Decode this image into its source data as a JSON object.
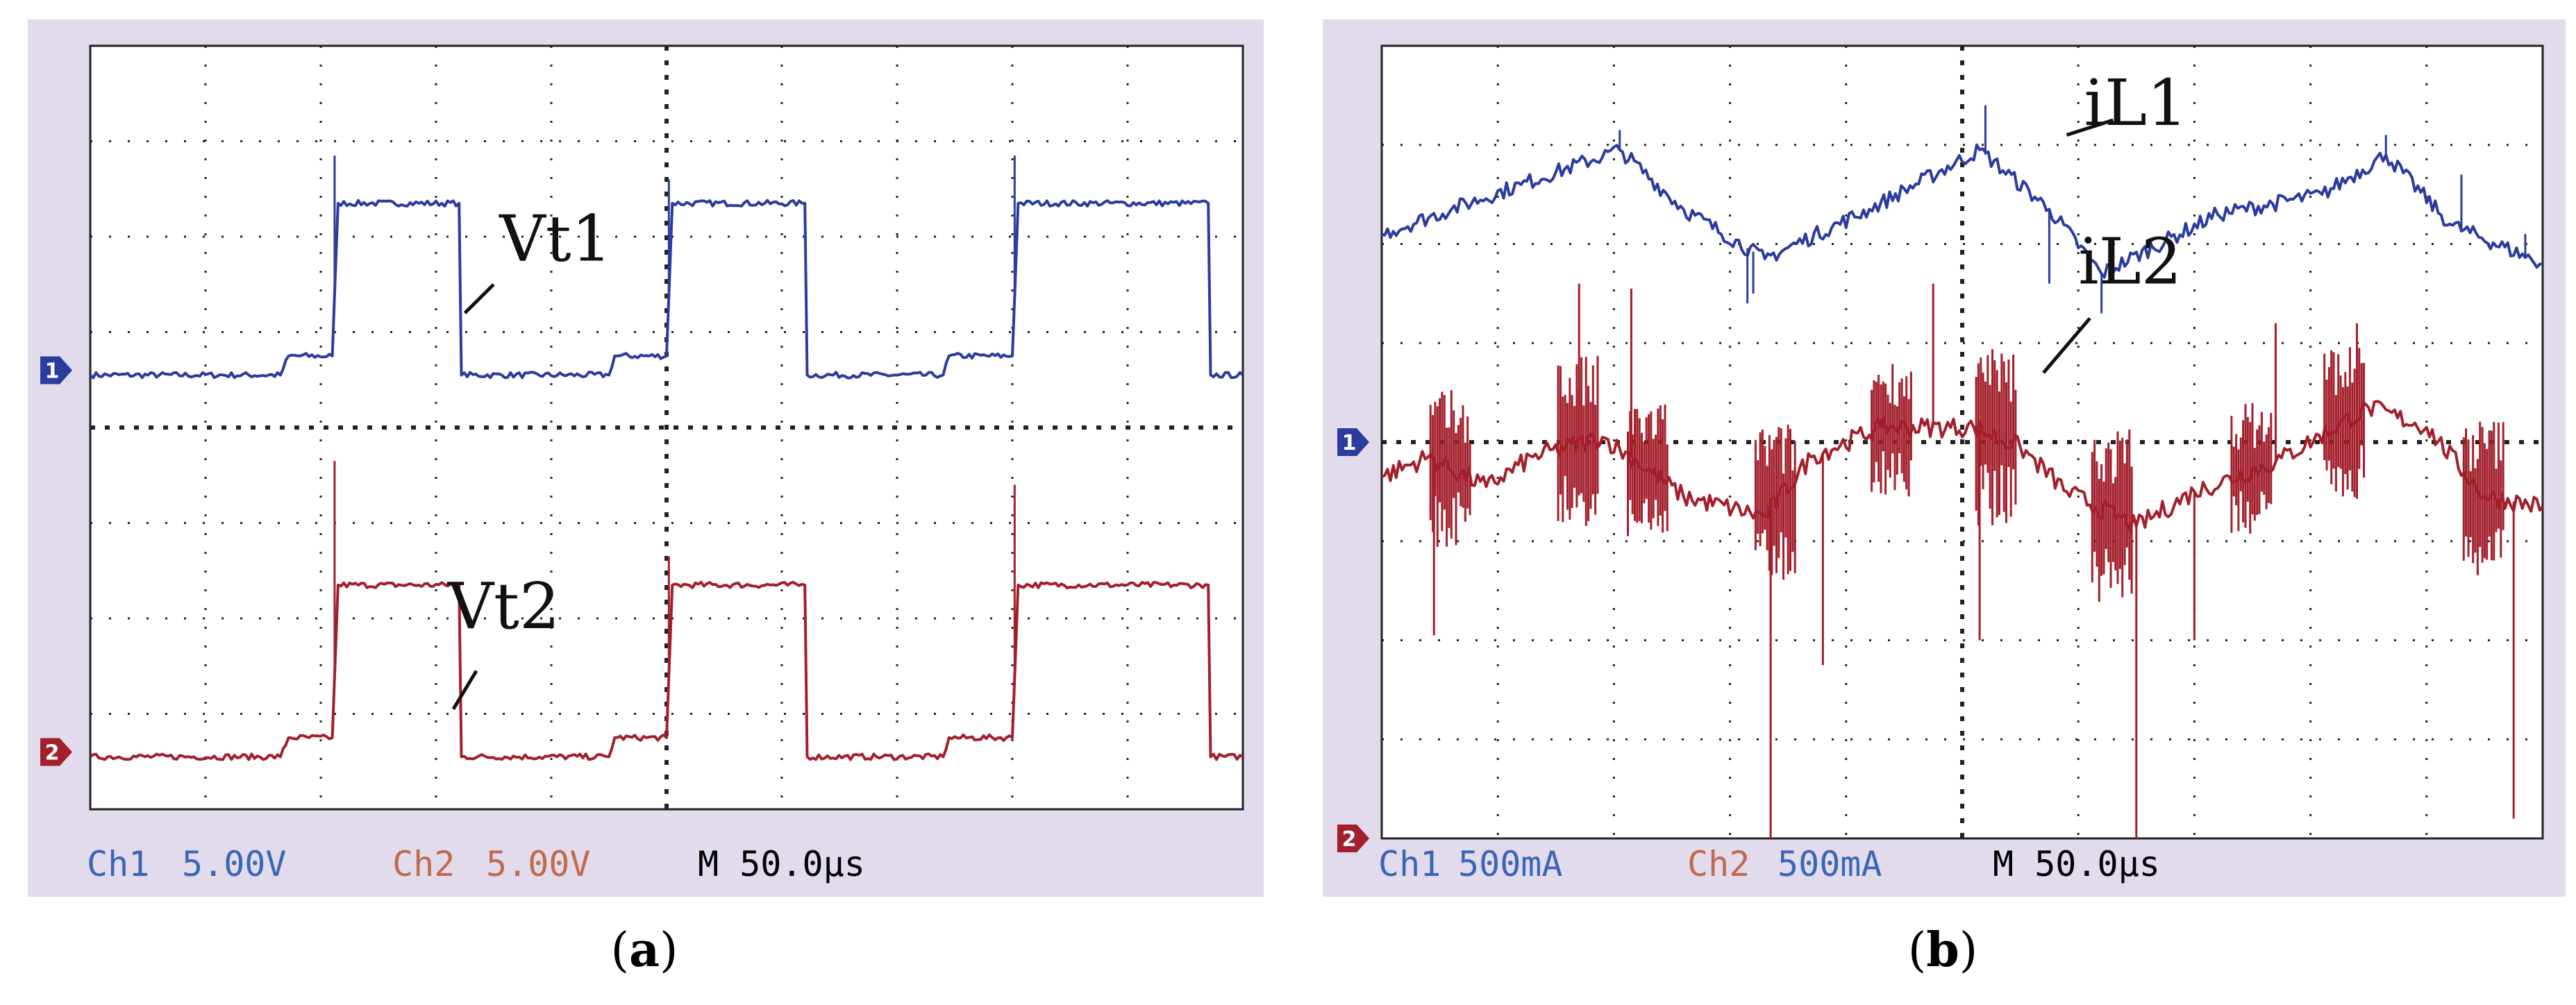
{
  "colors": {
    "panel_bg": "#e1dbec",
    "screen_bg": "#ffffff",
    "grid": "#222222",
    "ch1": "#2b3c9e",
    "ch2": "#a31f2b",
    "ch1_readout": "#3a66b8",
    "ch2_readout": "#c26a4c"
  },
  "chart_data": [
    {
      "type": "line",
      "panel": "a",
      "caption": "(a)",
      "caption_letter": "a",
      "caption_open": "(",
      "caption_close": ")",
      "time_per_div": "M 50.0µs",
      "x_range_div": [
        0,
        10
      ],
      "y_range_div": [
        -4,
        4
      ],
      "readouts": {
        "ch1_name": "Ch1",
        "ch1_scale": "5.00V",
        "ch2_name": "Ch2",
        "ch2_scale": "5.00V",
        "time": "M 50.0µs"
      },
      "channel_markers": [
        {
          "label": "1",
          "y_div": 0.6,
          "color_key": "ch1"
        },
        {
          "label": "2",
          "y_div": -3.4,
          "color_key": "ch2"
        }
      ],
      "series": [
        {
          "color_key": "ch1",
          "label": "Vt1",
          "points": [
            [
              0,
              0.55
            ],
            [
              1.65,
              0.55
            ],
            [
              1.72,
              0.75
            ],
            [
              2.1,
              0.75
            ],
            [
              2.15,
              2.35
            ],
            [
              3.2,
              2.35
            ],
            [
              3.22,
              0.55
            ],
            [
              4.5,
              0.55
            ],
            [
              4.55,
              0.75
            ],
            [
              5.0,
              0.75
            ],
            [
              5.05,
              2.35
            ],
            [
              6.2,
              2.35
            ],
            [
              6.22,
              0.55
            ],
            [
              7.4,
              0.55
            ],
            [
              7.45,
              0.75
            ],
            [
              8.0,
              0.75
            ],
            [
              8.05,
              2.35
            ],
            [
              9.7,
              2.35
            ],
            [
              9.72,
              0.55
            ],
            [
              10,
              0.55
            ]
          ],
          "spikes": [
            [
              2.12,
              2.85
            ],
            [
              5.02,
              2.6
            ],
            [
              8.02,
              2.85
            ]
          ],
          "label_pos": [
            3.55,
            1.75
          ],
          "label_leader": [
            [
              3.25,
              1.2
            ],
            [
              3.5,
              1.5
            ]
          ]
        },
        {
          "color_key": "ch2",
          "label": "Vt2",
          "points": [
            [
              0,
              -3.45
            ],
            [
              1.65,
              -3.45
            ],
            [
              1.72,
              -3.25
            ],
            [
              2.1,
              -3.25
            ],
            [
              2.15,
              -1.65
            ],
            [
              3.2,
              -1.65
            ],
            [
              3.22,
              -3.45
            ],
            [
              4.5,
              -3.45
            ],
            [
              4.55,
              -3.25
            ],
            [
              5.0,
              -3.25
            ],
            [
              5.05,
              -1.65
            ],
            [
              6.2,
              -1.65
            ],
            [
              6.22,
              -3.45
            ],
            [
              7.4,
              -3.45
            ],
            [
              7.45,
              -3.25
            ],
            [
              8.0,
              -3.25
            ],
            [
              8.05,
              -1.65
            ],
            [
              9.7,
              -1.65
            ],
            [
              9.72,
              -3.45
            ],
            [
              10,
              -3.45
            ]
          ],
          "spikes": [
            [
              2.12,
              -0.35
            ],
            [
              5.02,
              -1.35
            ],
            [
              8.02,
              -0.6
            ]
          ],
          "label_pos": [
            3.1,
            -2.1
          ],
          "label_leader": [
            [
              3.15,
              -2.95
            ],
            [
              3.35,
              -2.55
            ]
          ]
        }
      ]
    },
    {
      "type": "line",
      "panel": "b",
      "caption": "(b)",
      "caption_letter": "b",
      "caption_open": "(",
      "caption_close": ")",
      "time_per_div": "M 50.0µs",
      "x_range_div": [
        0,
        10
      ],
      "y_range_div": [
        -4,
        4
      ],
      "readouts": {
        "ch1_name": "Ch1",
        "ch1_scale": "500mA",
        "ch2_name": "Ch2",
        "ch2_scale": "500mA",
        "time": "M 50.0µs"
      },
      "channel_markers": [
        {
          "label": "1",
          "y_div": 0.0,
          "color_key": "ch1"
        },
        {
          "label": "2",
          "y_div": -4.0,
          "color_key": "ch2"
        }
      ],
      "series": [
        {
          "color_key": "ch1",
          "label": "iL1",
          "points": [
            [
              0,
              2.1
            ],
            [
              0.6,
              2.35
            ],
            [
              1.2,
              2.6
            ],
            [
              2.05,
              2.95
            ],
            [
              2.6,
              2.35
            ],
            [
              3.3,
              1.85
            ],
            [
              4.2,
              2.35
            ],
            [
              5.15,
              2.95
            ],
            [
              5.75,
              2.35
            ],
            [
              6.2,
              1.7
            ],
            [
              7.2,
              2.3
            ],
            [
              8.1,
              2.5
            ],
            [
              8.65,
              2.9
            ],
            [
              9.2,
              2.2
            ],
            [
              10,
              1.8
            ]
          ],
          "noise_amp": 0.08,
          "spikes": [
            [
              2.05,
              3.15
            ],
            [
              3.15,
              1.4
            ],
            [
              3.2,
              1.5
            ],
            [
              5.2,
              3.4
            ],
            [
              5.75,
              1.6
            ],
            [
              6.2,
              1.3
            ],
            [
              8.65,
              3.1
            ],
            [
              9.3,
              2.7
            ],
            [
              9.85,
              2.1
            ]
          ],
          "label_pos": [
            6.05,
            3.2
          ],
          "label_leader": [
            [
              5.9,
              3.1
            ],
            [
              6.3,
              3.25
            ]
          ]
        },
        {
          "color_key": "ch2",
          "label": "iL2",
          "points": [
            [
              0,
              -0.35
            ],
            [
              0.4,
              -0.15
            ],
            [
              0.9,
              -0.45
            ],
            [
              1.3,
              -0.15
            ],
            [
              1.9,
              0.05
            ],
            [
              2.2,
              -0.2
            ],
            [
              2.6,
              -0.55
            ],
            [
              3.3,
              -0.75
            ],
            [
              3.7,
              -0.15
            ],
            [
              4.3,
              0.15
            ],
            [
              5.1,
              0.15
            ],
            [
              5.5,
              -0.05
            ],
            [
              5.9,
              -0.5
            ],
            [
              6.5,
              -0.85
            ],
            [
              7.0,
              -0.5
            ],
            [
              7.7,
              -0.2
            ],
            [
              8.5,
              0.35
            ],
            [
              9.0,
              0.15
            ],
            [
              9.5,
              -0.55
            ],
            [
              10,
              -0.65
            ]
          ],
          "noise_amp": 0.1,
          "bursts": [
            [
              0.6,
              0.8
            ],
            [
              1.7,
              0.9
            ],
            [
              2.3,
              0.7
            ],
            [
              3.4,
              0.8
            ],
            [
              4.4,
              0.7
            ],
            [
              5.3,
              0.9
            ],
            [
              6.3,
              0.9
            ],
            [
              7.5,
              0.7
            ],
            [
              8.3,
              0.8
            ],
            [
              9.5,
              0.8
            ]
          ],
          "spikes": [
            [
              0.45,
              -1.95
            ],
            [
              1.7,
              1.6
            ],
            [
              2.15,
              1.55
            ],
            [
              3.35,
              -4.0
            ],
            [
              3.8,
              -2.25
            ],
            [
              4.75,
              1.6
            ],
            [
              5.15,
              -2.0
            ],
            [
              6.5,
              -4.0
            ],
            [
              7.0,
              -2.0
            ],
            [
              7.7,
              1.2
            ],
            [
              8.4,
              1.2
            ],
            [
              9.75,
              -3.8
            ]
          ],
          "label_pos": [
            6.0,
            1.6
          ],
          "label_leader": [
            [
              5.7,
              0.7
            ],
            [
              6.1,
              1.25
            ]
          ]
        }
      ]
    }
  ]
}
